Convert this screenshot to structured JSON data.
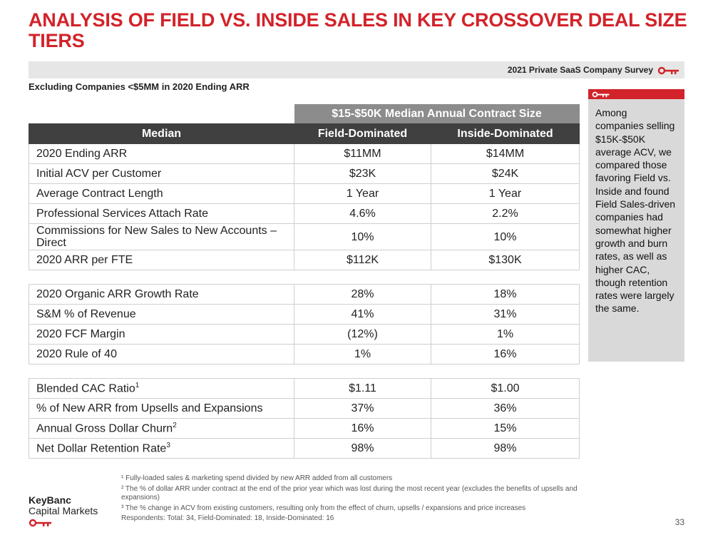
{
  "title": "ANALYSIS OF FIELD VS. INSIDE SALES IN KEY CROSSOVER DEAL SIZE TIERS",
  "survey_label": "2021 Private SaaS Company Survey",
  "subtitle": "Excluding Companies <$5MM in 2020 Ending ARR",
  "table": {
    "super_header": "$15-$50K Median Annual Contract Size",
    "headers": [
      "Median",
      "Field-Dominated",
      "Inside-Dominated"
    ],
    "groups": [
      [
        {
          "label": "2020 Ending ARR",
          "sup": "",
          "field": "$11MM",
          "inside": "$14MM"
        },
        {
          "label": "Initial ACV per Customer",
          "sup": "",
          "field": "$23K",
          "inside": "$24K"
        },
        {
          "label": "Average Contract Length",
          "sup": "",
          "field": "1 Year",
          "inside": "1 Year"
        },
        {
          "label": "Professional Services Attach Rate",
          "sup": "",
          "field": "4.6%",
          "inside": "2.2%"
        },
        {
          "label": "Commissions for New Sales to New Accounts – Direct",
          "sup": "",
          "field": "10%",
          "inside": "10%"
        },
        {
          "label": "2020 ARR per FTE",
          "sup": "",
          "field": "$112K",
          "inside": "$130K"
        }
      ],
      [
        {
          "label": "2020 Organic ARR Growth Rate",
          "sup": "",
          "field": "28%",
          "inside": "18%"
        },
        {
          "label": "S&M % of Revenue",
          "sup": "",
          "field": "41%",
          "inside": "31%"
        },
        {
          "label": "2020 FCF Margin",
          "sup": "",
          "field": "(12%)",
          "inside": "1%"
        },
        {
          "label": "2020 Rule of 40",
          "sup": "",
          "field": "1%",
          "inside": "16%"
        }
      ],
      [
        {
          "label": "Blended CAC Ratio",
          "sup": "1",
          "field": "$1.11",
          "inside": "$1.00"
        },
        {
          "label": "% of New ARR from Upsells and Expansions",
          "sup": "",
          "field": "37%",
          "inside": "36%"
        },
        {
          "label": "Annual Gross Dollar Churn",
          "sup": "2",
          "field": "16%",
          "inside": "15%"
        },
        {
          "label": "Net Dollar Retention Rate",
          "sup": "3",
          "field": "98%",
          "inside": "98%"
        }
      ]
    ]
  },
  "callout": "Among companies selling $15K-$50K average ACV, we compared those favoring Field vs. Inside and found Field Sales-driven companies had somewhat higher growth and burn rates, as well as higher CAC, though retention rates were largely the same.",
  "footnotes": [
    "¹ Fully-loaded sales & marketing spend divided by new ARR added from all customers",
    "² The % of dollar ARR under contract at the end of the prior year which was lost during the most recent year (excludes the benefits of upsells and expansions)",
    "³ The % change in ACV from existing customers, resulting only from the effect of churn, upsells / expansions and price increases",
    "Respondents: Total: 34, Field-Dominated: 18, Inside-Dominated: 16"
  ],
  "logo": {
    "line1": "KeyBanc",
    "line2": "Capital Markets"
  },
  "page_number": "33",
  "colors": {
    "accent": "#d2232a",
    "header_dark": "#404040",
    "header_mid": "#8c8c8c",
    "callout_bg": "#d9d9d9"
  },
  "icons": [
    "key-icon"
  ]
}
